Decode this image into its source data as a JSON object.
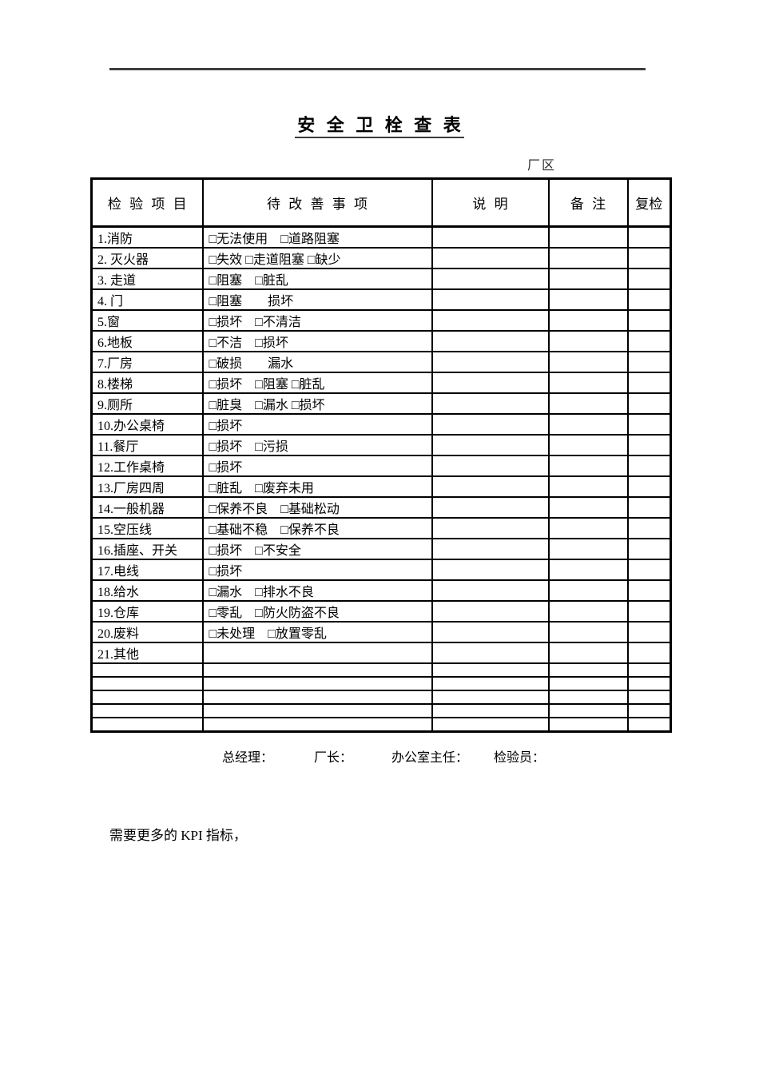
{
  "document": {
    "title": "安 全 卫 栓 查 表",
    "area_label": "厂区",
    "kpi_note": "需要更多的 KPI 指标，"
  },
  "table": {
    "headers": [
      "检 验 项 目",
      "待 改 善 事 项",
      "说 明",
      "备 注",
      "复检"
    ],
    "rows": [
      {
        "item": "1.消防",
        "issues": "□无法使用　□道路阻塞"
      },
      {
        "item": "2. 灭火器",
        "issues": "□失效 □走道阻塞 □缺少"
      },
      {
        "item": "3. 走道",
        "issues": "□阻塞　□脏乱"
      },
      {
        "item": "4. 门",
        "issues": "□阻塞　　损坏"
      },
      {
        "item": "5.窗",
        "issues": "□损坏　□不清洁"
      },
      {
        "item": "6.地板",
        "issues": "□不洁　□损坏"
      },
      {
        "item": "7.厂房",
        "issues": "□破损　　漏水"
      },
      {
        "item": "8.楼梯",
        "issues": "□损坏　□阻塞 □脏乱"
      },
      {
        "item": "9.厕所",
        "issues": "□脏臭　□漏水 □损坏"
      },
      {
        "item": "10.办公桌椅",
        "issues": "□损坏"
      },
      {
        "item": "11.餐厅",
        "issues": "□损坏　□污损"
      },
      {
        "item": "12.工作桌椅",
        "issues": "□损坏"
      },
      {
        "item": "13.厂房四周",
        "issues": "□脏乱　□废弃未用"
      },
      {
        "item": "14.一般机器",
        "issues": "□保养不良　□基础松动"
      },
      {
        "item": "15.空压线",
        "issues": "□基础不稳　□保养不良"
      },
      {
        "item": "16.插座、开关",
        "issues": "□损坏　□不安全"
      },
      {
        "item": "17.电线",
        "issues": "□损坏"
      },
      {
        "item": "18.给水",
        "issues": "□漏水　□排水不良"
      },
      {
        "item": "19.仓库",
        "issues": "□零乱　□防火防盗不良"
      },
      {
        "item": "20.废料",
        "issues": "□未处理　□放置零乱"
      },
      {
        "item": "21.其他",
        "issues": ""
      }
    ],
    "empty_row_count": 5
  },
  "signatures": [
    {
      "label": "总经理："
    },
    {
      "label": "厂长："
    },
    {
      "label": "办公室主任："
    },
    {
      "label": "检验员："
    }
  ]
}
